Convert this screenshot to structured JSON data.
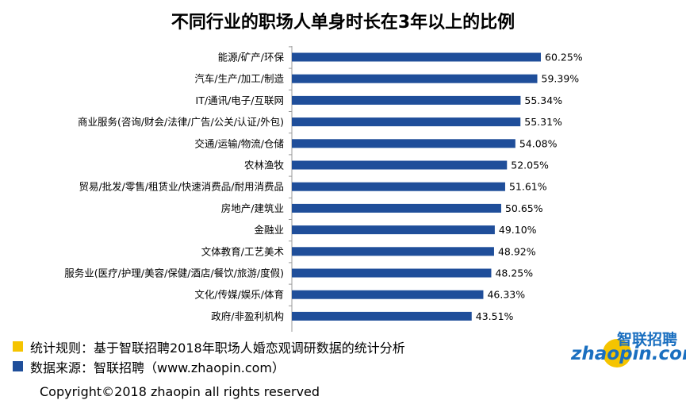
{
  "chart_data": {
    "type": "bar",
    "orientation": "horizontal",
    "title": "不同行业的职场人单身时长在3年以上的比例",
    "categories": [
      "能源/矿产/环保",
      "汽车/生产/加工/制造",
      "IT/通讯/电子/互联网",
      "商业服务(咨询/财会/法律/广告/公关/认证/外包)",
      "交通/运输/物流/仓储",
      "农林渔牧",
      "贸易/批发/零售/租赁业/快速消费品/耐用消费品",
      "房地产/建筑业",
      "金融业",
      "文体教育/工艺美术",
      "服务业(医疗/护理/美容/保健/酒店/餐饮/旅游/度假)",
      "文化/传媒/娱乐/体育",
      "政府/非盈利机构"
    ],
    "values": [
      60.25,
      59.39,
      55.34,
      55.31,
      54.08,
      52.05,
      51.61,
      50.65,
      49.1,
      48.92,
      48.25,
      46.33,
      43.51
    ],
    "value_labels": [
      "60.25%",
      "59.39%",
      "55.34%",
      "55.31%",
      "54.08%",
      "52.05%",
      "51.61%",
      "50.65%",
      "49.10%",
      "48.92%",
      "48.25%",
      "46.33%",
      "43.51%"
    ],
    "xlim": [
      0,
      72
    ],
    "grid": false,
    "bar_color": "#1f4e9a"
  },
  "notes": {
    "rule": "统计规则：基于智联招聘2018年职场人婚恋观调研数据的统计分析",
    "source": "数据来源：智联招聘（www.zhaopin.com）",
    "rule_color": "#f5c400",
    "source_color": "#1f4e9a"
  },
  "copyright": "Copyright©2018 zhaopin all rights reserved",
  "logo": {
    "cn": "智联招聘",
    "en": "zhaopin.com"
  }
}
